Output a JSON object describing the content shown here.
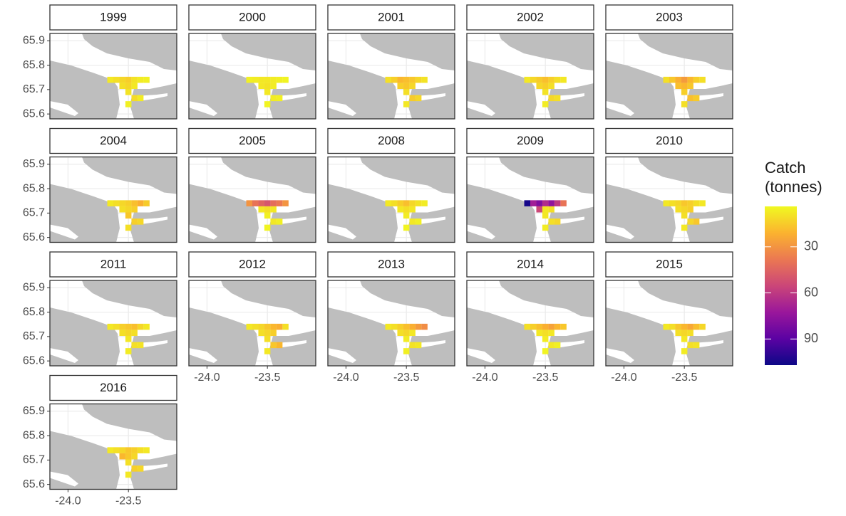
{
  "chart_data": {
    "type": "tile-map",
    "legend_title": "Catch (tonnes)",
    "colorscale": [
      "#f0f921",
      "#fbb32f",
      "#eb7852",
      "#cb4678",
      "#9a179b",
      "#5b02a3",
      "#0d0887"
    ],
    "clim": [
      3.7,
      107
    ],
    "cticks": [
      30,
      60,
      90
    ],
    "xlim": [
      -24.15,
      -23.1
    ],
    "ylim": [
      65.58,
      65.93
    ],
    "xticks": [
      {
        "value": -24,
        "label": "-24.0"
      },
      -23.5
    ],
    "yticks": [
      65.9,
      65.8,
      65.7,
      65.6
    ],
    "grid": true,
    "facets": [
      {
        "title": "1999",
        "x": [
          -23.65,
          -23.6,
          -23.55,
          -23.5,
          -23.45,
          -23.4,
          -23.35,
          -23.55,
          -23.5,
          -23.45,
          -23.5,
          -23.45,
          -23.4,
          -23.5
        ],
        "y": [
          65.74,
          65.74,
          65.74,
          65.74,
          65.74,
          65.74,
          65.74,
          65.715,
          65.715,
          65.715,
          65.69,
          65.665,
          65.665,
          65.64
        ],
        "values": [
          8,
          10,
          12,
          14,
          9,
          7,
          6,
          10,
          12,
          8,
          9,
          11,
          7,
          6
        ]
      },
      {
        "title": "2000",
        "x": [
          -23.65,
          -23.6,
          -23.55,
          -23.5,
          -23.45,
          -23.4,
          -23.35,
          -23.55,
          -23.5,
          -23.45,
          -23.5,
          -23.45,
          -23.4,
          -23.5
        ],
        "y": [
          65.74,
          65.74,
          65.74,
          65.74,
          65.74,
          65.74,
          65.74,
          65.715,
          65.715,
          65.715,
          65.69,
          65.665,
          65.665,
          65.64
        ],
        "values": [
          6,
          7,
          8,
          8,
          7,
          6,
          5,
          8,
          9,
          7,
          8,
          7,
          6,
          5
        ]
      },
      {
        "title": "2001",
        "x": [
          -23.65,
          -23.6,
          -23.55,
          -23.5,
          -23.45,
          -23.4,
          -23.35,
          -23.55,
          -23.5,
          -23.45,
          -23.5,
          -23.45,
          -23.4,
          -23.5
        ],
        "y": [
          65.74,
          65.74,
          65.74,
          65.74,
          65.74,
          65.74,
          65.74,
          65.715,
          65.715,
          65.715,
          65.69,
          65.665,
          65.665,
          65.64
        ],
        "values": [
          10,
          14,
          20,
          18,
          16,
          12,
          9,
          14,
          16,
          12,
          10,
          15,
          12,
          8
        ]
      },
      {
        "title": "2002",
        "x": [
          -23.65,
          -23.6,
          -23.55,
          -23.5,
          -23.45,
          -23.4,
          -23.35,
          -23.55,
          -23.5,
          -23.45,
          -23.5,
          -23.45,
          -23.4,
          -23.5
        ],
        "y": [
          65.74,
          65.74,
          65.74,
          65.74,
          65.74,
          65.74,
          65.74,
          65.715,
          65.715,
          65.715,
          65.69,
          65.665,
          65.665,
          65.64
        ],
        "values": [
          8,
          12,
          15,
          18,
          14,
          10,
          8,
          12,
          14,
          10,
          9,
          12,
          10,
          7
        ]
      },
      {
        "title": "2003",
        "x": [
          -23.65,
          -23.6,
          -23.55,
          -23.5,
          -23.45,
          -23.4,
          -23.35,
          -23.55,
          -23.5,
          -23.45,
          -23.5,
          -23.45,
          -23.4,
          -23.5
        ],
        "y": [
          65.74,
          65.74,
          65.74,
          65.74,
          65.74,
          65.74,
          65.74,
          65.715,
          65.715,
          65.715,
          65.69,
          65.665,
          65.665,
          65.64
        ],
        "values": [
          10,
          16,
          22,
          28,
          20,
          14,
          10,
          18,
          20,
          16,
          14,
          18,
          15,
          10
        ]
      },
      {
        "title": "2004",
        "x": [
          -23.65,
          -23.6,
          -23.55,
          -23.5,
          -23.45,
          -23.4,
          -23.35,
          -23.55,
          -23.5,
          -23.45,
          -23.5,
          -23.45,
          -23.4,
          -23.5
        ],
        "y": [
          65.74,
          65.74,
          65.74,
          65.74,
          65.74,
          65.74,
          65.74,
          65.715,
          65.715,
          65.715,
          65.69,
          65.665,
          65.665,
          65.64
        ],
        "values": [
          8,
          10,
          12,
          14,
          18,
          22,
          15,
          10,
          12,
          14,
          16,
          14,
          12,
          10
        ]
      },
      {
        "title": "2005",
        "x": [
          -23.65,
          -23.6,
          -23.55,
          -23.5,
          -23.45,
          -23.4,
          -23.35,
          -23.55,
          -23.5,
          -23.45,
          -23.5,
          -23.45,
          -23.4,
          -23.5
        ],
        "y": [
          65.74,
          65.74,
          65.74,
          65.74,
          65.74,
          65.74,
          65.74,
          65.715,
          65.715,
          65.715,
          65.69,
          65.665,
          65.665,
          65.64
        ],
        "values": [
          30,
          40,
          45,
          50,
          42,
          38,
          30,
          8,
          10,
          8,
          6,
          8,
          6,
          5
        ]
      },
      {
        "title": "2008",
        "x": [
          -23.65,
          -23.6,
          -23.55,
          -23.5,
          -23.45,
          -23.4,
          -23.35,
          -23.55,
          -23.5,
          -23.45,
          -23.5,
          -23.45,
          -23.4,
          -23.5
        ],
        "y": [
          65.74,
          65.74,
          65.74,
          65.74,
          65.74,
          65.74,
          65.74,
          65.715,
          65.715,
          65.715,
          65.69,
          65.665,
          65.665,
          65.64
        ],
        "values": [
          8,
          10,
          14,
          18,
          12,
          9,
          7,
          8,
          10,
          8,
          7,
          8,
          6,
          5
        ]
      },
      {
        "title": "2009",
        "x": [
          -23.65,
          -23.6,
          -23.55,
          -23.5,
          -23.45,
          -23.4,
          -23.35,
          -23.55,
          -23.5,
          -23.45,
          -23.5,
          -23.45,
          -23.4,
          -23.5
        ],
        "y": [
          65.74,
          65.74,
          65.74,
          65.74,
          65.74,
          65.74,
          65.74,
          65.715,
          65.715,
          65.715,
          65.69,
          65.665,
          65.665,
          65.64
        ],
        "values": [
          105,
          70,
          80,
          65,
          75,
          60,
          40,
          55,
          8,
          10,
          8,
          10,
          12,
          7
        ]
      },
      {
        "title": "2010",
        "x": [
          -23.65,
          -23.6,
          -23.55,
          -23.5,
          -23.45,
          -23.4,
          -23.35,
          -23.55,
          -23.5,
          -23.45,
          -23.5,
          -23.45,
          -23.4,
          -23.5
        ],
        "y": [
          65.74,
          65.74,
          65.74,
          65.74,
          65.74,
          65.74,
          65.74,
          65.715,
          65.715,
          65.715,
          65.69,
          65.665,
          65.665,
          65.64
        ],
        "values": [
          8,
          10,
          12,
          16,
          14,
          10,
          8,
          10,
          12,
          14,
          10,
          12,
          16,
          8
        ]
      },
      {
        "title": "2011",
        "x": [
          -23.65,
          -23.6,
          -23.55,
          -23.5,
          -23.45,
          -23.4,
          -23.35,
          -23.55,
          -23.5,
          -23.45,
          -23.5,
          -23.45,
          -23.4,
          -23.5
        ],
        "y": [
          65.74,
          65.74,
          65.74,
          65.74,
          65.74,
          65.74,
          65.74,
          65.715,
          65.715,
          65.715,
          65.69,
          65.665,
          65.665,
          65.64
        ],
        "values": [
          8,
          10,
          14,
          16,
          18,
          12,
          8,
          10,
          12,
          10,
          8,
          10,
          9,
          7
        ]
      },
      {
        "title": "2012",
        "x": [
          -23.65,
          -23.6,
          -23.55,
          -23.5,
          -23.45,
          -23.4,
          -23.35,
          -23.55,
          -23.5,
          -23.45,
          -23.5,
          -23.45,
          -23.4,
          -23.5
        ],
        "y": [
          65.74,
          65.74,
          65.74,
          65.74,
          65.74,
          65.74,
          65.74,
          65.715,
          65.715,
          65.715,
          65.69,
          65.665,
          65.665,
          65.64
        ],
        "values": [
          8,
          10,
          12,
          16,
          20,
          22,
          10,
          10,
          12,
          14,
          10,
          16,
          20,
          8
        ]
      },
      {
        "title": "2013",
        "x": [
          -23.65,
          -23.6,
          -23.55,
          -23.5,
          -23.45,
          -23.4,
          -23.35,
          -23.55,
          -23.5,
          -23.45,
          -23.5,
          -23.45,
          -23.4,
          -23.5
        ],
        "y": [
          65.74,
          65.74,
          65.74,
          65.74,
          65.74,
          65.74,
          65.74,
          65.715,
          65.715,
          65.715,
          65.69,
          65.665,
          65.665,
          65.64
        ],
        "values": [
          8,
          10,
          14,
          18,
          22,
          28,
          32,
          10,
          12,
          8,
          7,
          9,
          8,
          6
        ]
      },
      {
        "title": "2014",
        "x": [
          -23.65,
          -23.6,
          -23.55,
          -23.5,
          -23.45,
          -23.4,
          -23.35,
          -23.55,
          -23.5,
          -23.45,
          -23.5,
          -23.45,
          -23.4,
          -23.5
        ],
        "y": [
          65.74,
          65.74,
          65.74,
          65.74,
          65.74,
          65.74,
          65.74,
          65.715,
          65.715,
          65.715,
          65.69,
          65.665,
          65.665,
          65.64
        ],
        "values": [
          10,
          14,
          18,
          22,
          26,
          20,
          16,
          8,
          10,
          8,
          7,
          8,
          6,
          5
        ]
      },
      {
        "title": "2015",
        "x": [
          -23.65,
          -23.6,
          -23.55,
          -23.5,
          -23.45,
          -23.4,
          -23.35,
          -23.55,
          -23.5,
          -23.45,
          -23.5,
          -23.45,
          -23.4,
          -23.5
        ],
        "y": [
          65.74,
          65.74,
          65.74,
          65.74,
          65.74,
          65.74,
          65.74,
          65.715,
          65.715,
          65.715,
          65.69,
          65.665,
          65.665,
          65.64
        ],
        "values": [
          8,
          10,
          16,
          20,
          24,
          18,
          12,
          10,
          12,
          10,
          8,
          10,
          9,
          7
        ]
      },
      {
        "title": "2016",
        "x": [
          -23.65,
          -23.6,
          -23.55,
          -23.5,
          -23.45,
          -23.4,
          -23.35,
          -23.55,
          -23.5,
          -23.45,
          -23.5,
          -23.45,
          -23.4,
          -23.5
        ],
        "y": [
          65.74,
          65.74,
          65.74,
          65.74,
          65.74,
          65.74,
          65.74,
          65.715,
          65.715,
          65.715,
          65.69,
          65.665,
          65.665,
          65.64
        ],
        "values": [
          8,
          10,
          12,
          16,
          14,
          10,
          8,
          20,
          16,
          12,
          10,
          14,
          12,
          8
        ]
      }
    ]
  }
}
